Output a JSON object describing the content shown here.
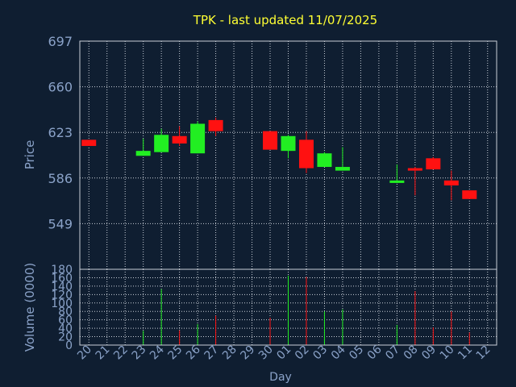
{
  "chart_data": {
    "type": "candlestick",
    "title": "TPK - last updated 11/07/2025",
    "xlabel": "Day",
    "price_panel": {
      "ylabel": "Price",
      "yticks": [
        549,
        586,
        623,
        660,
        697
      ],
      "ylim": [
        512,
        697
      ]
    },
    "volume_panel": {
      "ylabel": "Volume (0000)",
      "yticks": [
        0,
        20,
        40,
        60,
        80,
        100,
        120,
        140,
        160,
        180
      ],
      "ylim": [
        0,
        180
      ]
    },
    "days": [
      "20",
      "21",
      "22",
      "23",
      "24",
      "25",
      "26",
      "27",
      "28",
      "29",
      "30",
      "01",
      "02",
      "03",
      "04",
      "05",
      "06",
      "07",
      "08",
      "09",
      "10",
      "11",
      "12"
    ],
    "candles": [
      {
        "day": "20",
        "open": 617,
        "close": 612,
        "high": 617,
        "low": 612,
        "volume": 0
      },
      {
        "day": "23",
        "open": 604,
        "close": 608,
        "high": 618,
        "low": 604,
        "volume": 34
      },
      {
        "day": "24",
        "open": 607,
        "close": 621,
        "high": 626,
        "low": 607,
        "volume": 133
      },
      {
        "day": "25",
        "open": 620,
        "close": 614,
        "high": 628,
        "low": 612,
        "volume": 35
      },
      {
        "day": "26",
        "open": 606,
        "close": 630,
        "high": 632,
        "low": 606,
        "volume": 50
      },
      {
        "day": "27",
        "open": 633,
        "close": 624,
        "high": 635,
        "low": 620,
        "volume": 70
      },
      {
        "day": "30",
        "open": 624,
        "close": 609,
        "high": 624,
        "low": 609,
        "volume": 65
      },
      {
        "day": "01",
        "open": 608,
        "close": 620,
        "high": 621,
        "low": 602,
        "volume": 165
      },
      {
        "day": "02",
        "open": 617,
        "close": 594,
        "high": 624,
        "low": 590,
        "volume": 162
      },
      {
        "day": "03",
        "open": 595,
        "close": 606,
        "high": 607,
        "low": 595,
        "volume": 80
      },
      {
        "day": "04",
        "open": 592,
        "close": 595,
        "high": 611,
        "low": 592,
        "volume": 85
      },
      {
        "day": "07",
        "open": 582,
        "close": 584,
        "high": 597,
        "low": 582,
        "volume": 48
      },
      {
        "day": "08",
        "open": 594,
        "close": 592,
        "high": 595,
        "low": 572,
        "volume": 128
      },
      {
        "day": "09",
        "open": 602,
        "close": 593,
        "high": 603,
        "low": 593,
        "volume": 42
      },
      {
        "day": "10",
        "open": 584,
        "close": 580,
        "high": 592,
        "low": 568,
        "volume": 80
      },
      {
        "day": "11",
        "open": 576,
        "close": 569,
        "high": 576,
        "low": 569,
        "volume": 30
      }
    ],
    "colors": {
      "up": "#22ee22",
      "down": "#ff1111",
      "background": "#0f1e31",
      "text": "#8aa2c8",
      "title": "#ffff33",
      "grid": "#c9cfd8"
    },
    "grid": true
  }
}
